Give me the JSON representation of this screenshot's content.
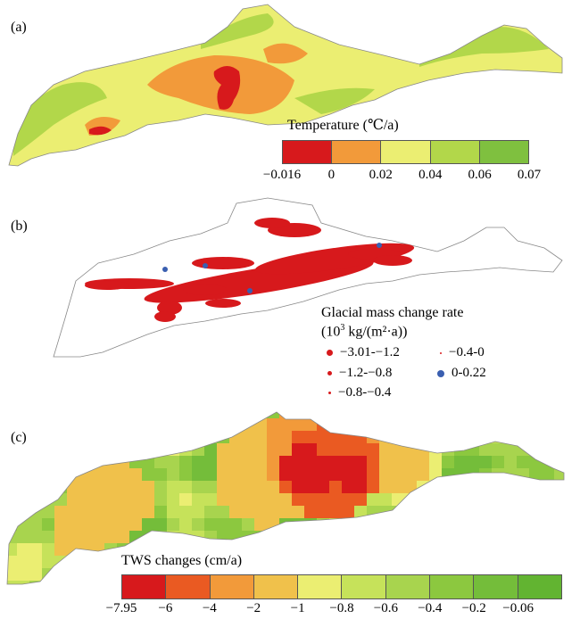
{
  "panels": {
    "a": {
      "label": "(a)",
      "legend_title": "Temperature (℃/a)",
      "colors": [
        "#d7191c",
        "#f29a3a",
        "#ebee72",
        "#b2d74a",
        "#7fc03f"
      ],
      "ticks": [
        "−0.016",
        "0",
        "0.02",
        "0.04",
        "0.06",
        "0.07"
      ]
    },
    "b": {
      "label": "(b)",
      "legend_title_line1": "Glacial mass change rate",
      "legend_title_line2_pre": "(10",
      "legend_title_sup": "3",
      "legend_title_line2_post": " kg/(m²·a))",
      "classes": [
        {
          "label": "−3.01-−1.2",
          "color": "#d7191c"
        },
        {
          "label": "−1.2-−0.8",
          "color": "#d7191c"
        },
        {
          "label": "−0.8-−0.4",
          "color": "#d7191c"
        },
        {
          "label": "−0.4-0",
          "color": "#d7191c"
        },
        {
          "label": "0-0.22",
          "color": "#3a5fb0"
        }
      ]
    },
    "c": {
      "label": "(c)",
      "legend_title": "TWS changes (cm/a)",
      "colors": [
        "#d7191c",
        "#ea5a22",
        "#f29a3a",
        "#f0c14b",
        "#ebee72",
        "#c6e25a",
        "#a8d44e",
        "#8cc83f",
        "#74bd3a",
        "#62b431"
      ],
      "ticks": [
        "−7.95",
        "−6",
        "−4",
        "−2",
        "−1",
        "−0.8",
        "−0.6",
        "−0.4",
        "−0.2",
        "−0.06"
      ]
    }
  }
}
